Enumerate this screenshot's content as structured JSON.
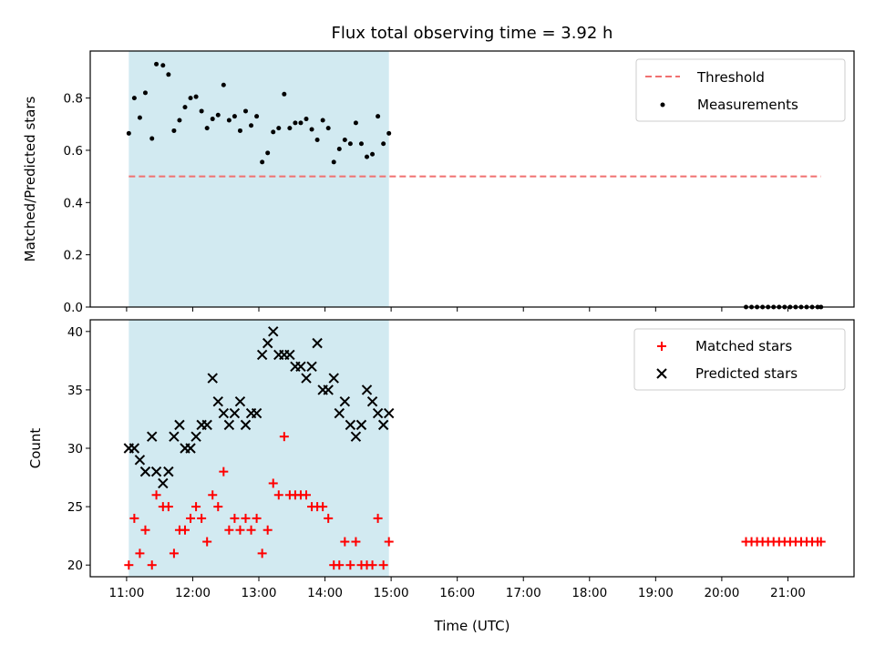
{
  "figure": {
    "title": "Flux total observing time = 3.92 h"
  },
  "colors": {
    "span": "#add8e6",
    "threshold": "#f07070",
    "measurement": "#000000",
    "matched": "#ff0000",
    "predicted": "#000000"
  },
  "chart_data": [
    {
      "type": "scatter",
      "ylabel": "Matched/Predicted stars",
      "xlabel": "",
      "xlim": [
        "10:27",
        "22:00"
      ],
      "ylim": [
        0,
        0.98
      ],
      "yticks": [
        0.0,
        0.2,
        0.4,
        0.6,
        0.8
      ],
      "ytick_labels": [
        "0.0",
        "0.2",
        "0.4",
        "0.6",
        "0.8"
      ],
      "grid": false,
      "legend_position": "top-right",
      "shaded_span": [
        "11:02",
        "14:58"
      ],
      "threshold": {
        "name": "Threshold",
        "value": 0.5,
        "x_range": [
          "11:02",
          "21:30"
        ]
      },
      "series": [
        {
          "name": "Measurements",
          "points": [
            [
              "11:02",
              0.665
            ],
            [
              "11:07",
              0.8
            ],
            [
              "11:12",
              0.725
            ],
            [
              "11:17",
              0.82
            ],
            [
              "11:23",
              0.645
            ],
            [
              "11:27",
              0.93
            ],
            [
              "11:33",
              0.925
            ],
            [
              "11:38",
              0.89
            ],
            [
              "11:43",
              0.675
            ],
            [
              "11:48",
              0.715
            ],
            [
              "11:53",
              0.765
            ],
            [
              "11:58",
              0.8
            ],
            [
              "12:03",
              0.805
            ],
            [
              "12:08",
              0.75
            ],
            [
              "12:13",
              0.685
            ],
            [
              "12:18",
              0.72
            ],
            [
              "12:23",
              0.735
            ],
            [
              "12:28",
              0.85
            ],
            [
              "12:33",
              0.715
            ],
            [
              "12:38",
              0.73
            ],
            [
              "12:43",
              0.675
            ],
            [
              "12:48",
              0.75
            ],
            [
              "12:53",
              0.695
            ],
            [
              "12:58",
              0.73
            ],
            [
              "13:03",
              0.555
            ],
            [
              "13:08",
              0.59
            ],
            [
              "13:13",
              0.67
            ],
            [
              "13:18",
              0.685
            ],
            [
              "13:23",
              0.815
            ],
            [
              "13:28",
              0.685
            ],
            [
              "13:33",
              0.705
            ],
            [
              "13:38",
              0.705
            ],
            [
              "13:43",
              0.72
            ],
            [
              "13:48",
              0.68
            ],
            [
              "13:53",
              0.64
            ],
            [
              "13:58",
              0.715
            ],
            [
              "14:03",
              0.685
            ],
            [
              "14:08",
              0.555
            ],
            [
              "14:13",
              0.605
            ],
            [
              "14:18",
              0.64
            ],
            [
              "14:23",
              0.625
            ],
            [
              "14:28",
              0.705
            ],
            [
              "14:33",
              0.625
            ],
            [
              "14:38",
              0.575
            ],
            [
              "14:43",
              0.585
            ],
            [
              "14:48",
              0.73
            ],
            [
              "14:53",
              0.625
            ],
            [
              "14:58",
              0.665
            ],
            [
              "20:22",
              0.0
            ],
            [
              "20:27",
              0.0
            ],
            [
              "20:32",
              0.0
            ],
            [
              "20:37",
              0.0
            ],
            [
              "20:42",
              0.0
            ],
            [
              "20:47",
              0.0
            ],
            [
              "20:52",
              0.0
            ],
            [
              "20:57",
              0.0
            ],
            [
              "21:02",
              0.0
            ],
            [
              "21:07",
              0.0
            ],
            [
              "21:12",
              0.0
            ],
            [
              "21:17",
              0.0
            ],
            [
              "21:22",
              0.0
            ],
            [
              "21:27",
              0.0
            ],
            [
              "21:30",
              0.0
            ]
          ]
        }
      ]
    },
    {
      "type": "scatter",
      "ylabel": "Count",
      "xlabel": "Time (UTC)",
      "xlim": [
        "10:27",
        "22:00"
      ],
      "ylim": [
        19,
        41
      ],
      "yticks": [
        20,
        25,
        30,
        35,
        40
      ],
      "ytick_labels": [
        "20",
        "25",
        "30",
        "35",
        "40"
      ],
      "xticks": [
        "11:00",
        "12:00",
        "13:00",
        "14:00",
        "15:00",
        "16:00",
        "17:00",
        "18:00",
        "19:00",
        "20:00",
        "21:00"
      ],
      "xtick_labels": [
        "11:00",
        "12:00",
        "13:00",
        "14:00",
        "15:00",
        "16:00",
        "17:00",
        "18:00",
        "19:00",
        "20:00",
        "21:00"
      ],
      "grid": false,
      "legend_position": "top-right",
      "shaded_span": [
        "11:02",
        "14:58"
      ],
      "series": [
        {
          "name": "Matched stars",
          "points": [
            [
              "11:02",
              20
            ],
            [
              "11:07",
              24
            ],
            [
              "11:12",
              21
            ],
            [
              "11:17",
              23
            ],
            [
              "11:23",
              20
            ],
            [
              "11:27",
              26
            ],
            [
              "11:33",
              25
            ],
            [
              "11:38",
              25
            ],
            [
              "11:43",
              21
            ],
            [
              "11:48",
              23
            ],
            [
              "11:53",
              23
            ],
            [
              "11:58",
              24
            ],
            [
              "12:03",
              25
            ],
            [
              "12:08",
              24
            ],
            [
              "12:13",
              22
            ],
            [
              "12:18",
              26
            ],
            [
              "12:23",
              25
            ],
            [
              "12:28",
              28
            ],
            [
              "12:33",
              23
            ],
            [
              "12:38",
              24
            ],
            [
              "12:43",
              23
            ],
            [
              "12:48",
              24
            ],
            [
              "12:53",
              23
            ],
            [
              "12:58",
              24
            ],
            [
              "13:03",
              21
            ],
            [
              "13:08",
              23
            ],
            [
              "13:13",
              27
            ],
            [
              "13:18",
              26
            ],
            [
              "13:23",
              31
            ],
            [
              "13:28",
              26
            ],
            [
              "13:33",
              26
            ],
            [
              "13:38",
              26
            ],
            [
              "13:43",
              26
            ],
            [
              "13:48",
              25
            ],
            [
              "13:53",
              25
            ],
            [
              "13:58",
              25
            ],
            [
              "14:03",
              24
            ],
            [
              "14:08",
              20
            ],
            [
              "14:13",
              20
            ],
            [
              "14:18",
              22
            ],
            [
              "14:23",
              20
            ],
            [
              "14:28",
              22
            ],
            [
              "14:33",
              20
            ],
            [
              "14:38",
              20
            ],
            [
              "14:43",
              20
            ],
            [
              "14:48",
              24
            ],
            [
              "14:53",
              20
            ],
            [
              "14:58",
              22
            ],
            [
              "20:22",
              22
            ],
            [
              "20:27",
              22
            ],
            [
              "20:32",
              22
            ],
            [
              "20:37",
              22
            ],
            [
              "20:42",
              22
            ],
            [
              "20:47",
              22
            ],
            [
              "20:52",
              22
            ],
            [
              "20:57",
              22
            ],
            [
              "21:02",
              22
            ],
            [
              "21:07",
              22
            ],
            [
              "21:12",
              22
            ],
            [
              "21:17",
              22
            ],
            [
              "21:22",
              22
            ],
            [
              "21:27",
              22
            ],
            [
              "21:30",
              22
            ]
          ]
        },
        {
          "name": "Predicted stars",
          "points": [
            [
              "11:02",
              30
            ],
            [
              "11:07",
              30
            ],
            [
              "11:12",
              29
            ],
            [
              "11:17",
              28
            ],
            [
              "11:23",
              31
            ],
            [
              "11:27",
              28
            ],
            [
              "11:33",
              27
            ],
            [
              "11:38",
              28
            ],
            [
              "11:43",
              31
            ],
            [
              "11:48",
              32
            ],
            [
              "11:53",
              30
            ],
            [
              "11:58",
              30
            ],
            [
              "12:03",
              31
            ],
            [
              "12:08",
              32
            ],
            [
              "12:13",
              32
            ],
            [
              "12:18",
              36
            ],
            [
              "12:23",
              34
            ],
            [
              "12:28",
              33
            ],
            [
              "12:33",
              32
            ],
            [
              "12:38",
              33
            ],
            [
              "12:43",
              34
            ],
            [
              "12:48",
              32
            ],
            [
              "12:53",
              33
            ],
            [
              "12:58",
              33
            ],
            [
              "13:03",
              38
            ],
            [
              "13:08",
              39
            ],
            [
              "13:13",
              40
            ],
            [
              "13:18",
              38
            ],
            [
              "13:23",
              38
            ],
            [
              "13:28",
              38
            ],
            [
              "13:33",
              37
            ],
            [
              "13:38",
              37
            ],
            [
              "13:43",
              36
            ],
            [
              "13:48",
              37
            ],
            [
              "13:53",
              39
            ],
            [
              "13:58",
              35
            ],
            [
              "14:03",
              35
            ],
            [
              "14:08",
              36
            ],
            [
              "14:13",
              33
            ],
            [
              "14:18",
              34
            ],
            [
              "14:23",
              32
            ],
            [
              "14:28",
              31
            ],
            [
              "14:33",
              32
            ],
            [
              "14:38",
              35
            ],
            [
              "14:43",
              34
            ],
            [
              "14:48",
              33
            ],
            [
              "14:53",
              32
            ],
            [
              "14:58",
              33
            ]
          ]
        }
      ]
    }
  ]
}
